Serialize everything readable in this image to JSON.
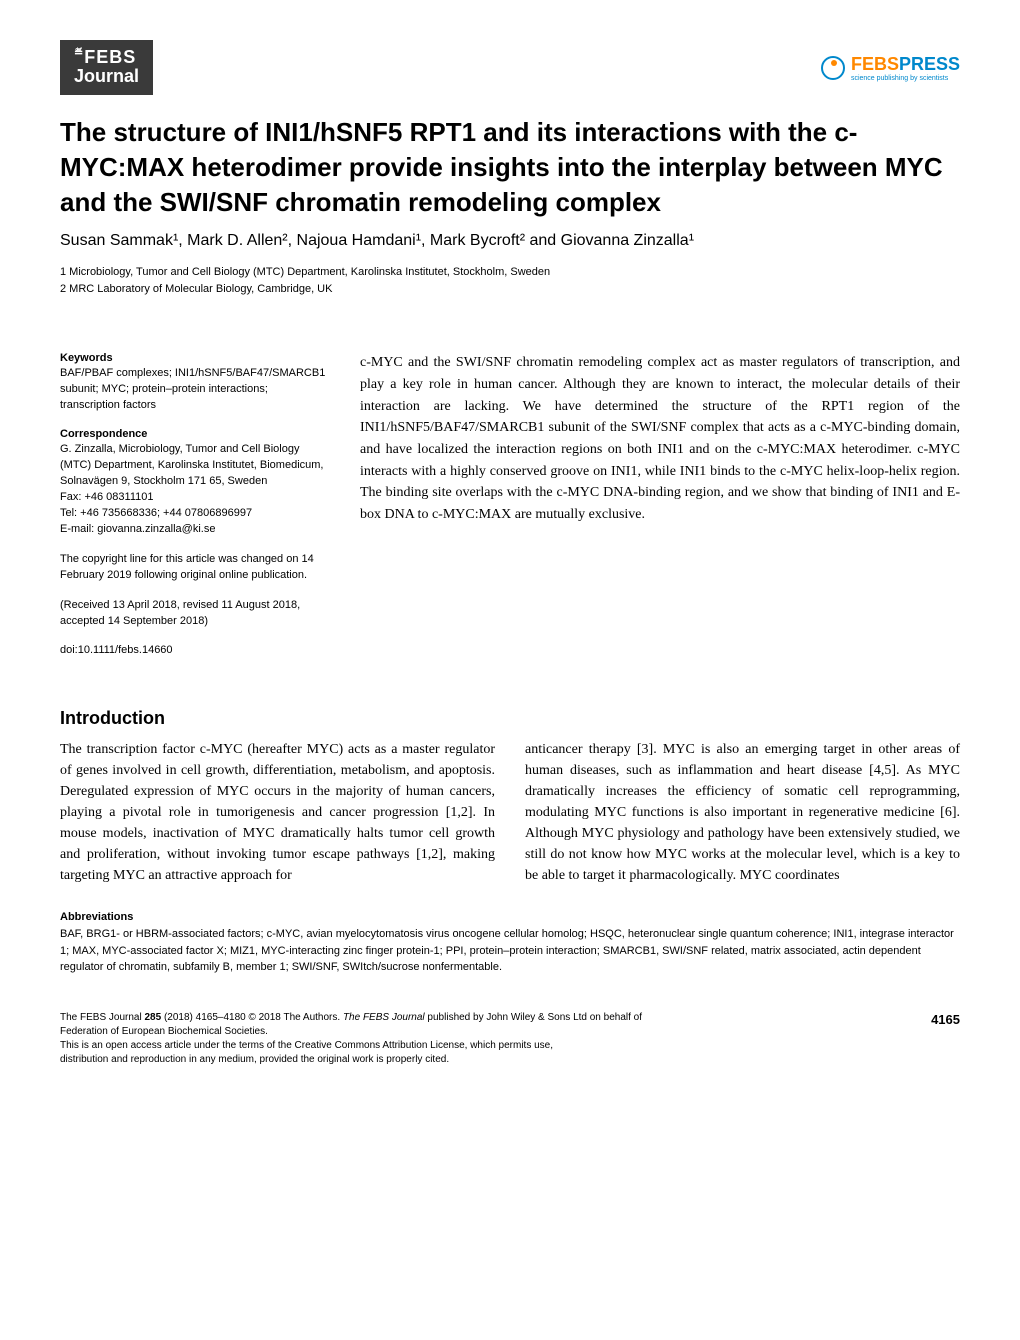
{
  "logos": {
    "febs_journal_top": "FEBS",
    "febs_journal_prefix": "≝",
    "febs_journal_bottom": "Journal",
    "febs_press_febs": "FEBS",
    "febs_press_press": "PRESS",
    "febs_press_tagline": "science publishing by scientists"
  },
  "title": "The structure of INI1/hSNF5 RPT1 and its interactions with the c-MYC:MAX heterodimer provide insights into the interplay between MYC and the SWI/SNF chromatin remodeling complex",
  "authors_html": "Susan Sammak¹, Mark D. Allen², Najoua Hamdani¹, Mark Bycroft² and Giovanna Zinzalla¹",
  "affiliations": {
    "line1": "1 Microbiology, Tumor and Cell Biology (MTC) Department, Karolinska Institutet, Stockholm, Sweden",
    "line2": "2 MRC Laboratory of Molecular Biology, Cambridge, UK"
  },
  "sidebar": {
    "keywords_heading": "Keywords",
    "keywords_text": "BAF/PBAF complexes; INI1/hSNF5/BAF47/SMARCB1 subunit; MYC; protein–protein interactions; transcription factors",
    "correspondence_heading": "Correspondence",
    "correspondence_text": "G. Zinzalla, Microbiology, Tumor and Cell Biology (MTC) Department, Karolinska Institutet, Biomedicum, Solnavägen 9, Stockholm 171 65, Sweden",
    "fax": "Fax: +46 08311101",
    "tel": "Tel: +46 735668336; +44 07806896997",
    "email": "E-mail: giovanna.zinzalla@ki.se",
    "copyright_note": "The copyright line for this article was changed on 14 February 2019 following original online publication.",
    "dates": "(Received 13 April 2018, revised 11 August 2018, accepted 14 September 2018)",
    "doi": "doi:10.1111/febs.14660"
  },
  "abstract": "c-MYC and the SWI/SNF chromatin remodeling complex act as master regulators of transcription, and play a key role in human cancer. Although they are known to interact, the molecular details of their interaction are lacking. We have determined the structure of the RPT1 region of the INI1/hSNF5/BAF47/SMARCB1 subunit of the SWI/SNF complex that acts as a c-MYC-binding domain, and have localized the interaction regions on both INI1 and on the c-MYC:MAX heterodimer. c-MYC interacts with a highly conserved groove on INI1, while INI1 binds to the c-MYC helix-loop-helix region. The binding site overlaps with the c-MYC DNA-binding region, and we show that binding of INI1 and E-box DNA to c-MYC:MAX are mutually exclusive.",
  "introduction_heading": "Introduction",
  "intro_col1": "The transcription factor c-MYC (hereafter MYC) acts as a master regulator of genes involved in cell growth, differentiation, metabolism, and apoptosis. Deregulated expression of MYC occurs in the majority of human cancers, playing a pivotal role in tumorigenesis and cancer progression [1,2]. In mouse models, inactivation of MYC dramatically halts tumor cell growth and proliferation, without invoking tumor escape pathways [1,2], making targeting MYC an attractive approach for",
  "intro_col2": "anticancer therapy [3]. MYC is also an emerging target in other areas of human diseases, such as inflammation and heart disease [4,5]. As MYC dramatically increases the efficiency of somatic cell reprogramming, modulating MYC functions is also important in regenerative medicine [6]. Although MYC physiology and pathology have been extensively studied, we still do not know how MYC works at the molecular level, which is a key to be able to target it pharmacologically. MYC coordinates",
  "abbreviations": {
    "heading": "Abbreviations",
    "content": "BAF, BRG1- or HBRM-associated factors; c-MYC, avian myelocytomatosis virus oncogene cellular homolog; HSQC, heteronuclear single quantum coherence; INI1, integrase interactor 1; MAX, MYC-associated factor X; MIZ1, MYC-interacting zinc finger protein-1; PPI, protein–protein interaction; SMARCB1, SWI/SNF related, matrix associated, actin dependent regulator of chromatin, subfamily B, member 1; SWI/SNF, SWItch/sucrose nonfermentable."
  },
  "footer": {
    "line1_prefix": "The FEBS Journal ",
    "line1_vol": "285",
    "line1_mid": " (2018) 4165–4180 © 2018 The Authors. ",
    "line1_journal": "The FEBS Journal",
    "line1_suffix": " published by John Wiley & Sons Ltd on behalf of",
    "line2": "Federation of European Biochemical Societies.",
    "line3": "This is an open access article under the terms of the Creative Commons Attribution License, which permits use,",
    "line4": "distribution and reproduction in any medium, provided the original work is properly cited.",
    "page_number": "4165"
  }
}
